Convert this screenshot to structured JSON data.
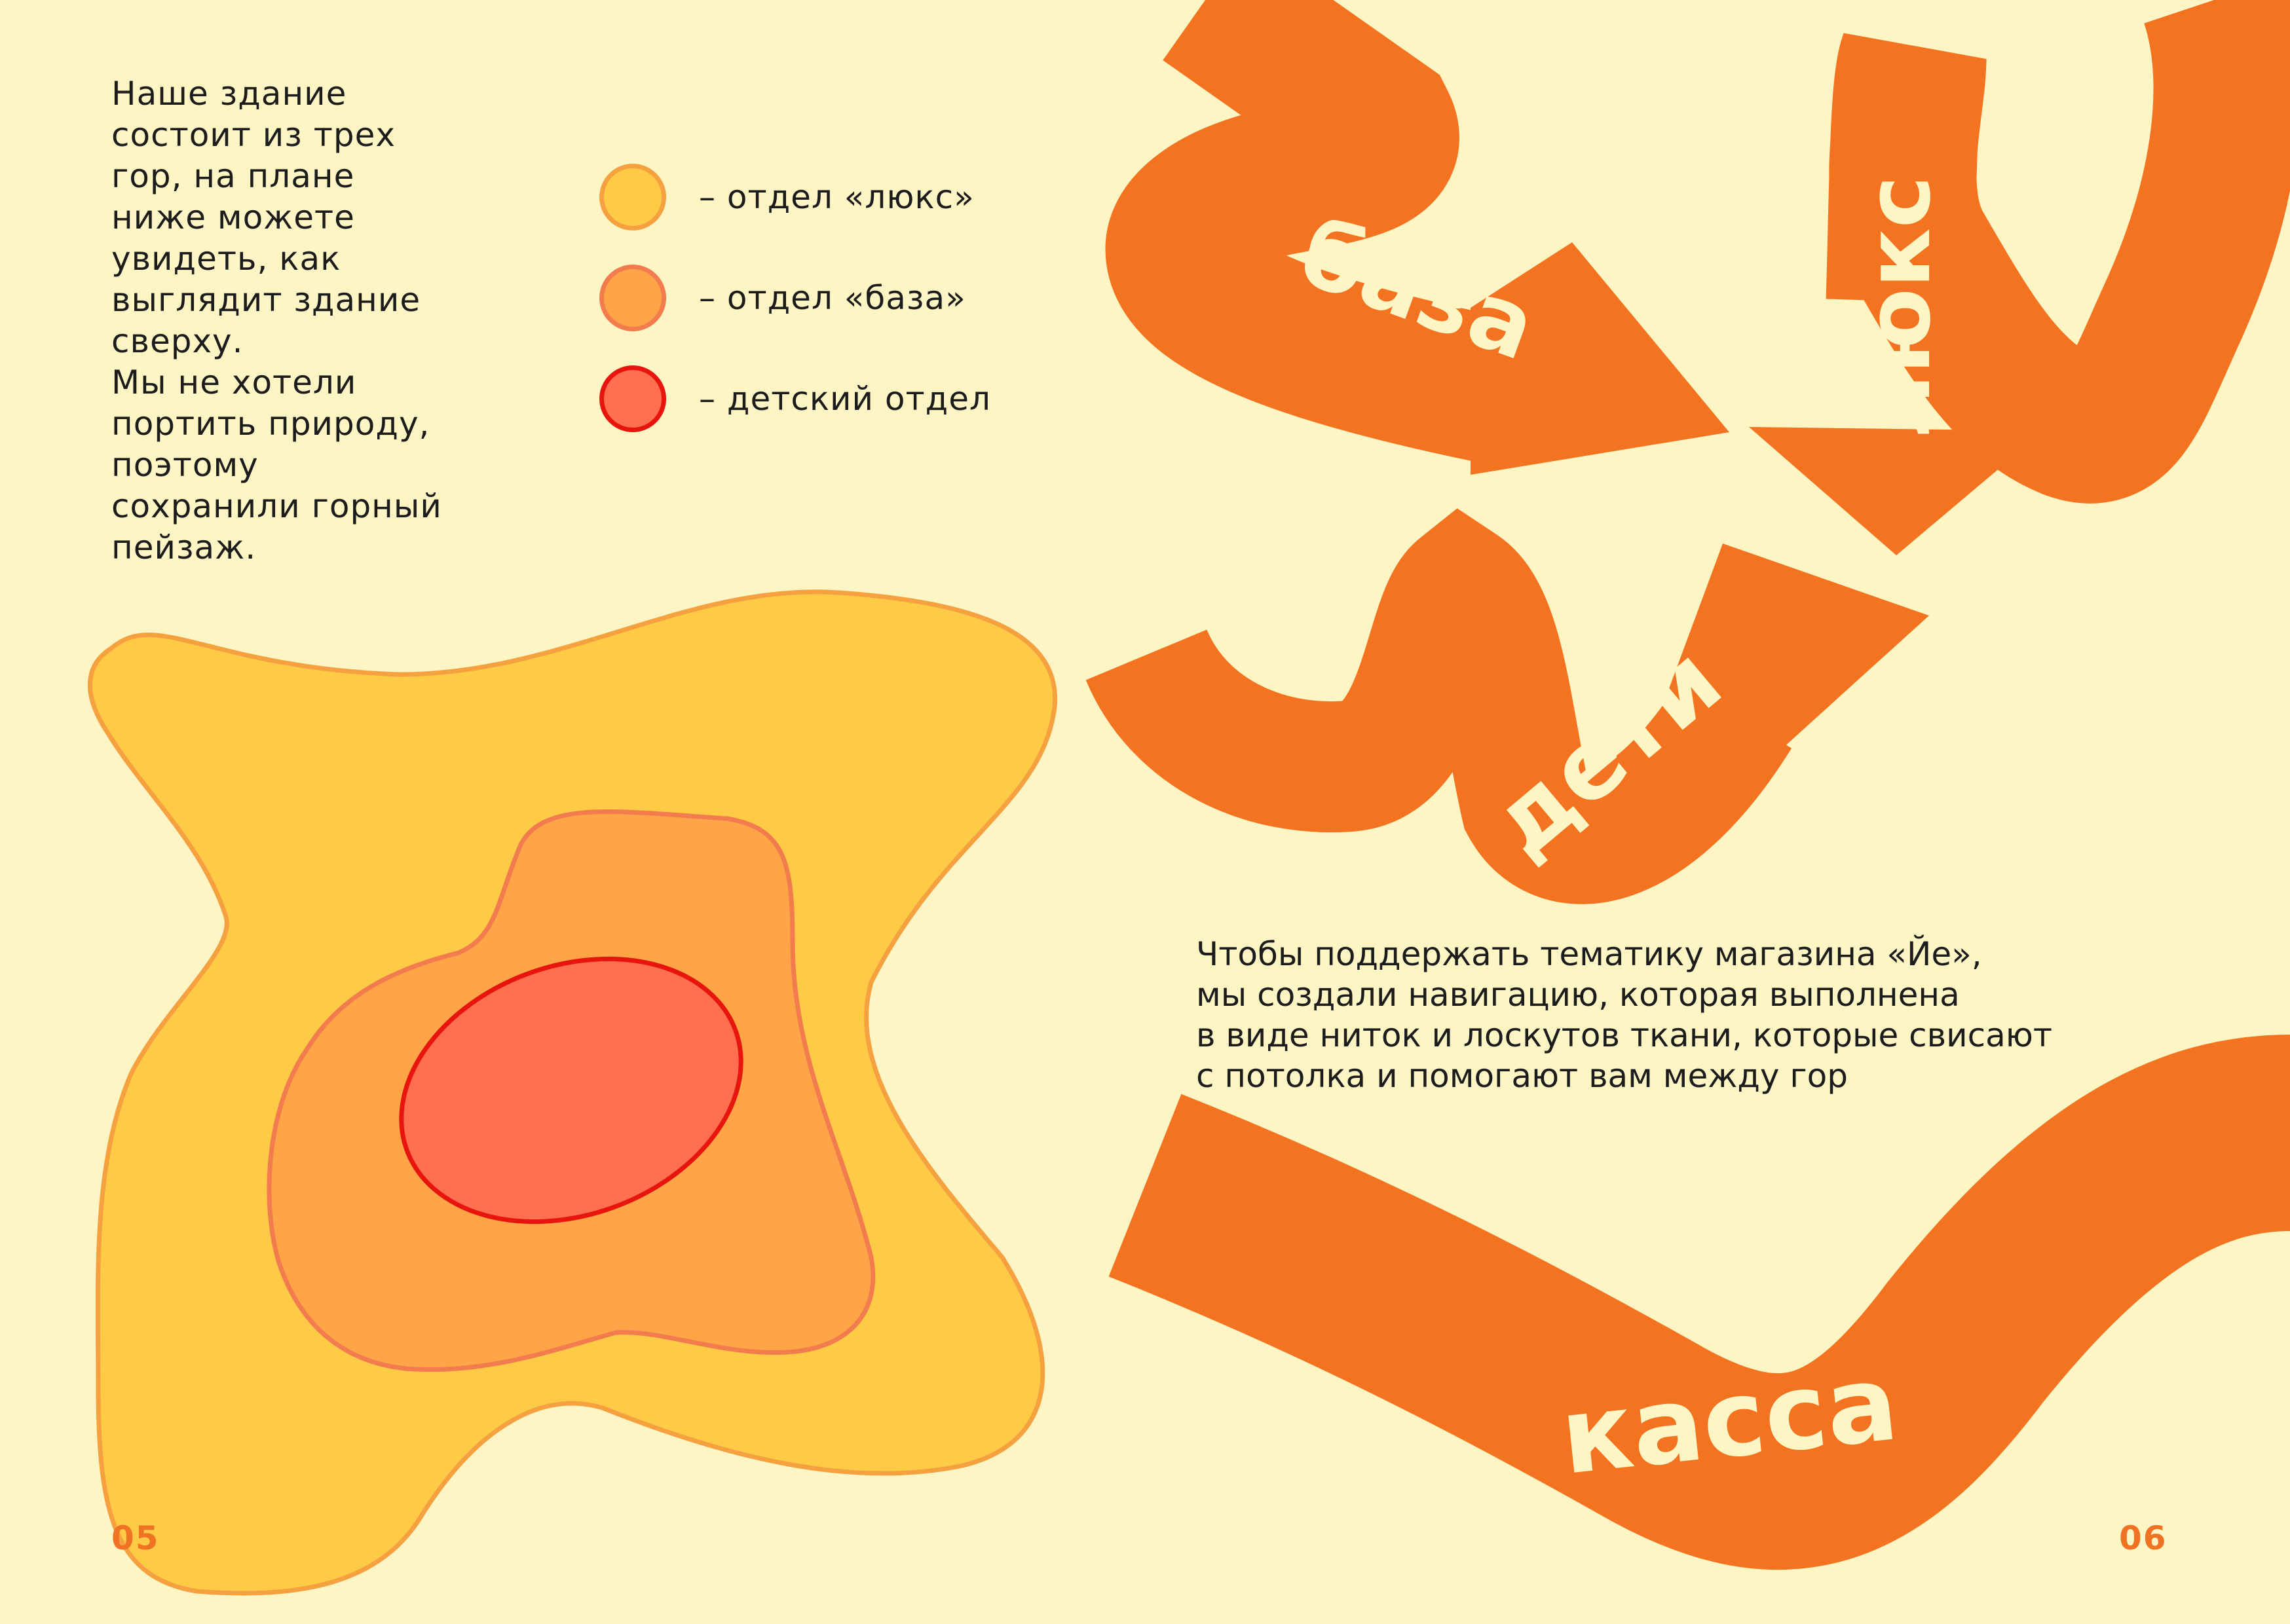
{
  "left_page": {
    "intro_lines": [
      "Наше здание",
      "состоит из трех",
      "гор, на плане",
      "ниже можете",
      "увидеть, как",
      "выглядит здание",
      "сверху.",
      "Мы не хотели",
      "портить природу,",
      "поэтому",
      "сохранили горный",
      "пейзаж."
    ],
    "legend": [
      {
        "color": "#FFCB47",
        "border": "#F5A13F",
        "label": "– отдел «люкс»"
      },
      {
        "color": "#FFA548",
        "border": "#F27C4E",
        "label": "– отдел «база»"
      },
      {
        "color": "#FF6F50",
        "border": "#E8150F",
        "label": "– детский отдел"
      }
    ],
    "page_number": "05"
  },
  "right_page": {
    "arrows": {
      "base": "база",
      "lux": "люкс",
      "kids": "дети",
      "checkout": "касса"
    },
    "nav_text_lines": [
      "Чтобы поддержать тематику магазина «Йе»,",
      "мы создали навигацию, которая выполнена",
      "в виде ниток и лоскутов ткани, которые свисают",
      "с потолка и помогают вам между гор"
    ],
    "page_number": "06"
  },
  "colors": {
    "background": "#FEF5C5",
    "accent_orange": "#F47321",
    "text": "#1C1C1C",
    "label_on_orange": "#FEF5C5"
  }
}
